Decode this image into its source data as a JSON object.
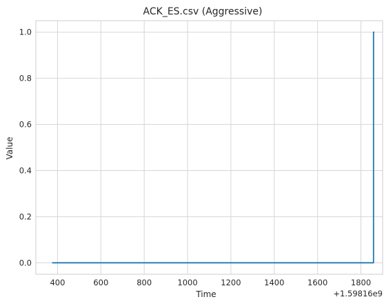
{
  "chart_data": {
    "type": "line",
    "title": "ACK_ES.csv (Aggressive)",
    "xlabel": "Time",
    "ylabel": "Value",
    "x_offset_label": "+1.59816e9",
    "xlim": [
      300,
      1900
    ],
    "ylim": [
      -0.05,
      1.05
    ],
    "xticks": [
      400,
      600,
      800,
      1000,
      1200,
      1400,
      1600,
      1800
    ],
    "yticks": [
      0.0,
      0.2,
      0.4,
      0.6,
      0.8,
      1.0
    ],
    "xtick_labels": [
      "400",
      "600",
      "800",
      "1000",
      "1200",
      "1400",
      "1600",
      "1800"
    ],
    "ytick_labels": [
      "0.0",
      "0.2",
      "0.4",
      "0.6",
      "0.8",
      "1.0"
    ],
    "grid": true,
    "series": [
      {
        "color": "#1f77b4",
        "x": [
          375,
          1858,
          1858,
          1862
        ],
        "y": [
          0.0,
          0.0,
          1.0,
          1.0
        ]
      }
    ]
  }
}
